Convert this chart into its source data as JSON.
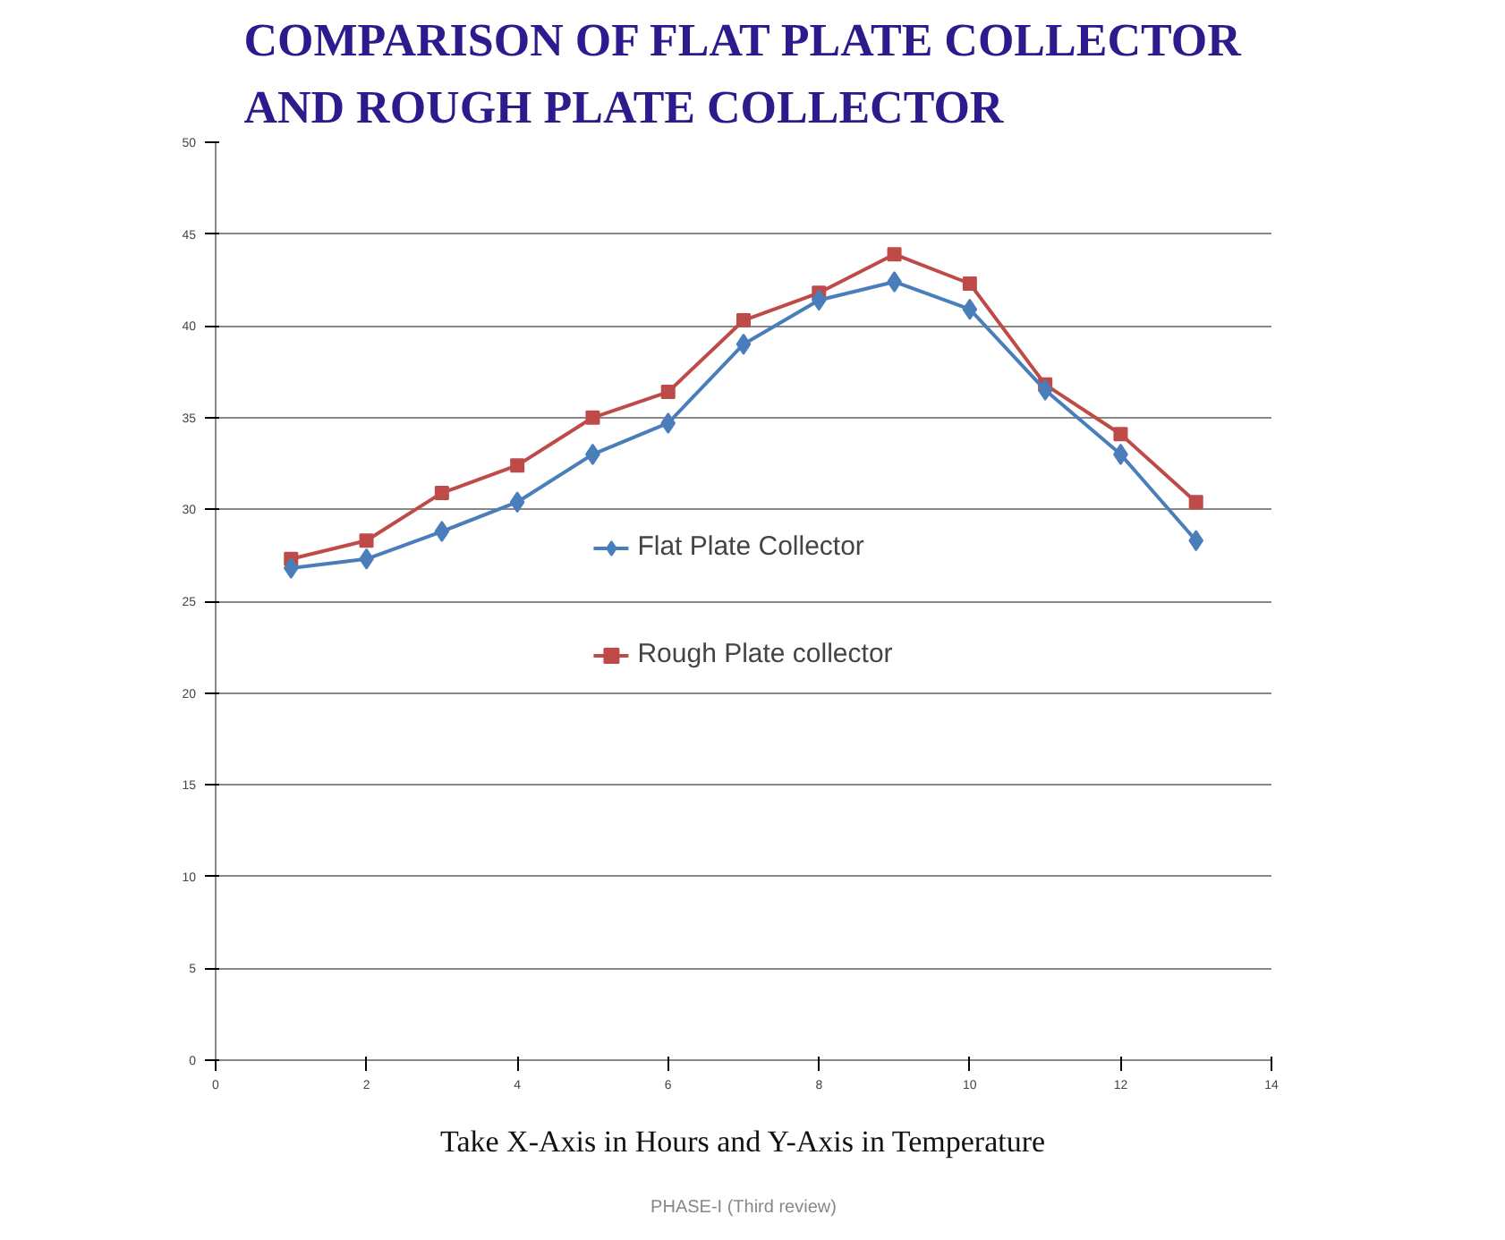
{
  "chart_data": {
    "type": "line",
    "title": "COMPARISON OF FLAT PLATE COLLECTOR AND ROUGH PLATE COLLECTOR",
    "x": [
      1,
      2,
      3,
      4,
      5,
      6,
      7,
      8,
      9,
      10,
      11,
      12,
      13
    ],
    "series": [
      {
        "name": "Flat Plate Collector",
        "color": "#4a7ebb",
        "marker": "diamond",
        "values": [
          26.8,
          27.3,
          28.8,
          30.4,
          33.0,
          34.7,
          39.0,
          41.4,
          42.4,
          40.9,
          36.5,
          33.0,
          28.3
        ]
      },
      {
        "name": "Rough Plate collector",
        "color": "#be4b48",
        "marker": "square",
        "values": [
          27.3,
          28.3,
          30.9,
          32.4,
          35.0,
          36.4,
          40.3,
          41.8,
          43.9,
          42.3,
          36.8,
          34.1,
          30.4
        ]
      }
    ],
    "xlim": [
      0,
      14
    ],
    "xticks": [
      0,
      2,
      4,
      6,
      8,
      10,
      12,
      14
    ],
    "ylim": [
      0,
      50
    ],
    "yticks": [
      0,
      5,
      10,
      15,
      20,
      25,
      30,
      35,
      40,
      45,
      50
    ],
    "grid": "y",
    "legend": "center",
    "line_style": "solid",
    "annotations": [
      "Take X-Axis in Hours and Y-Axis in Temperature",
      "PHASE-I (Third review)"
    ]
  }
}
